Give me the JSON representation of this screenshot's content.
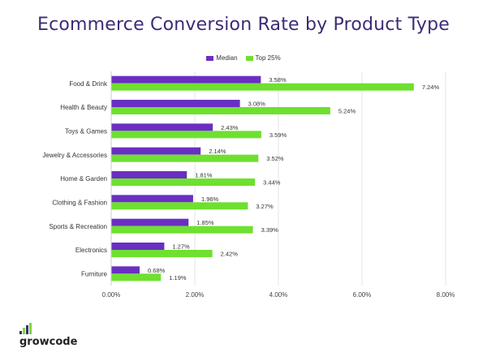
{
  "colors": {
    "median": "#6a2fc2",
    "top25": "#6ee02f",
    "title": "#3d2b78",
    "grid": "#e6e6e6"
  },
  "brand": {
    "name": "growcode",
    "icon": "bar-growth-icon"
  },
  "chart_data": {
    "type": "bar",
    "orientation": "horizontal",
    "title": "Ecommerce Conversion Rate by Product Type",
    "xlabel": "",
    "ylabel": "",
    "xlim": [
      0,
      8
    ],
    "xticks": [
      "0.00%",
      "2.00%",
      "4.00%",
      "6.00%",
      "8.00%"
    ],
    "legend": "top-center",
    "grid": true,
    "categories": [
      "Food & Drink",
      "Health & Beauty",
      "Toys & Games",
      "Jewelry & Accessories",
      "Home & Garden",
      "Clothing & Fashion",
      "Sports & Recreation",
      "Electronics",
      "Furniture"
    ],
    "series": [
      {
        "name": "Median",
        "values": [
          3.58,
          3.08,
          2.43,
          2.14,
          1.81,
          1.96,
          1.85,
          1.27,
          0.68
        ],
        "labels": [
          "3.58%",
          "3.08%",
          "2.43%",
          "2.14%",
          "1.81%",
          "1.96%",
          "1.85%",
          "1.27%",
          "0.68%"
        ]
      },
      {
        "name": "Top 25%",
        "values": [
          7.24,
          5.24,
          3.59,
          3.52,
          3.44,
          3.27,
          3.39,
          2.42,
          1.19
        ],
        "labels": [
          "7.24%",
          "5.24%",
          "3.59%",
          "3.52%",
          "3.44%",
          "3.27%",
          "3.39%",
          "2.42%",
          "1.19%"
        ]
      }
    ]
  }
}
